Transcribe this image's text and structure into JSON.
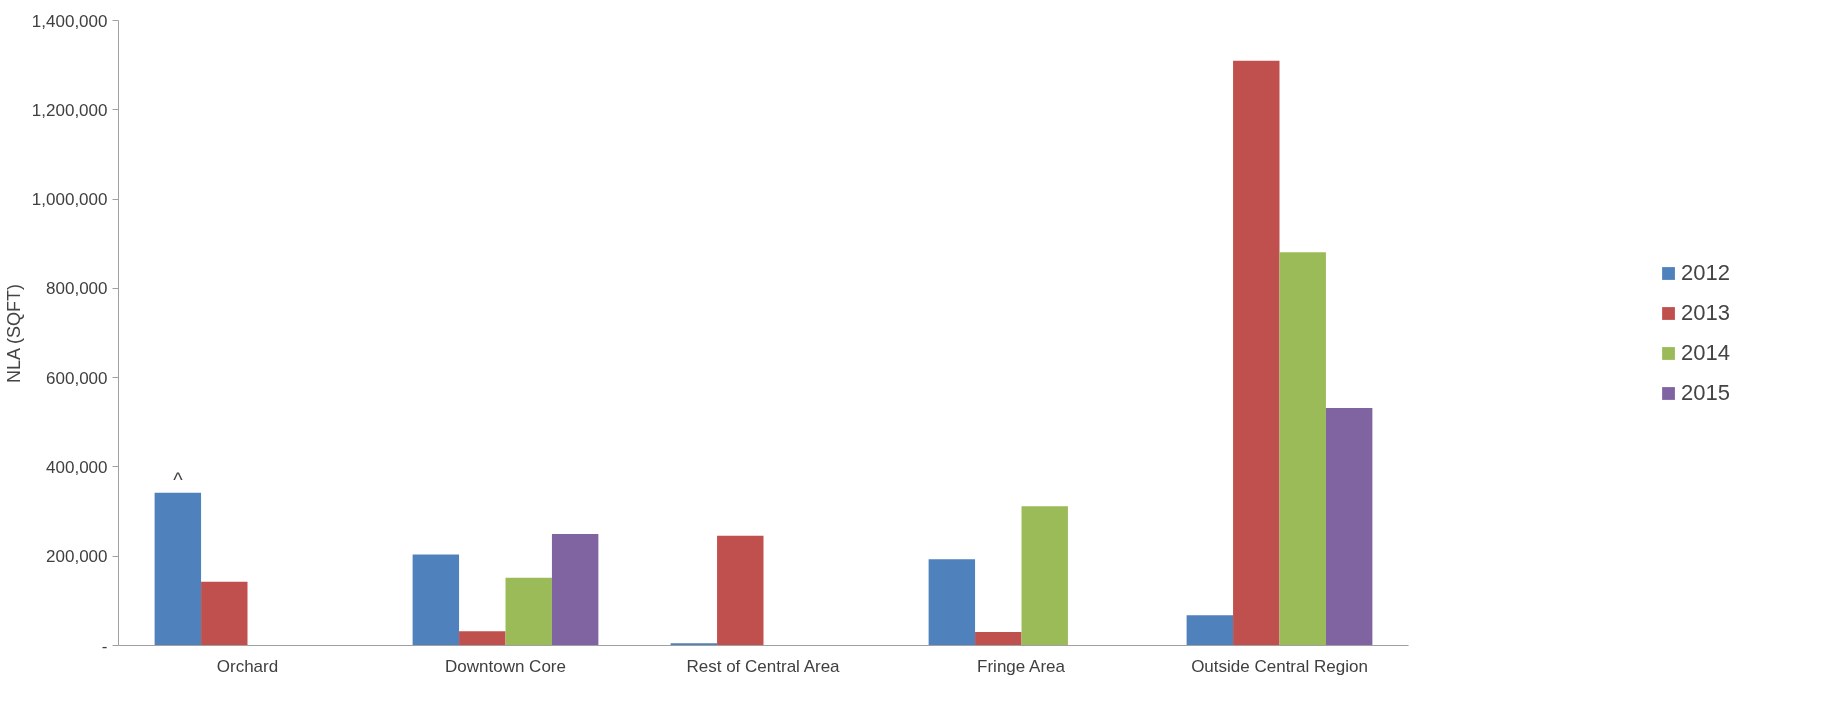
{
  "chart_data": {
    "type": "bar",
    "ylabel": "NLA (SQFT)",
    "categories": [
      "Orchard",
      "Downtown Core",
      "Rest of Central Area",
      "Fringe Area",
      "Outside Central Region"
    ],
    "series": [
      {
        "name": "2012",
        "color": "#4f81bd",
        "values": [
          342000,
          204000,
          5000,
          193000,
          68000
        ]
      },
      {
        "name": "2013",
        "color": "#c0504d",
        "values": [
          143000,
          32000,
          246000,
          30000,
          1310000
        ]
      },
      {
        "name": "2014",
        "color": "#9bbb59",
        "values": [
          null,
          152000,
          null,
          312000,
          881000
        ]
      },
      {
        "name": "2015",
        "color": "#8064a2",
        "values": [
          null,
          250000,
          null,
          null,
          532000
        ]
      }
    ],
    "ylim": [
      0,
      1400000
    ],
    "yticks": [
      {
        "value": 0,
        "label": "-"
      },
      {
        "value": 200000,
        "label": "200,000"
      },
      {
        "value": 400000,
        "label": "400,000"
      },
      {
        "value": 600000,
        "label": "600,000"
      },
      {
        "value": 800000,
        "label": "800,000"
      },
      {
        "value": 1000000,
        "label": "1,000,000"
      },
      {
        "value": 1200000,
        "label": "1,200,000"
      },
      {
        "value": 1400000,
        "label": "1,400,000"
      }
    ],
    "annotations": [
      "^"
    ],
    "grid": false,
    "legend": "right"
  }
}
